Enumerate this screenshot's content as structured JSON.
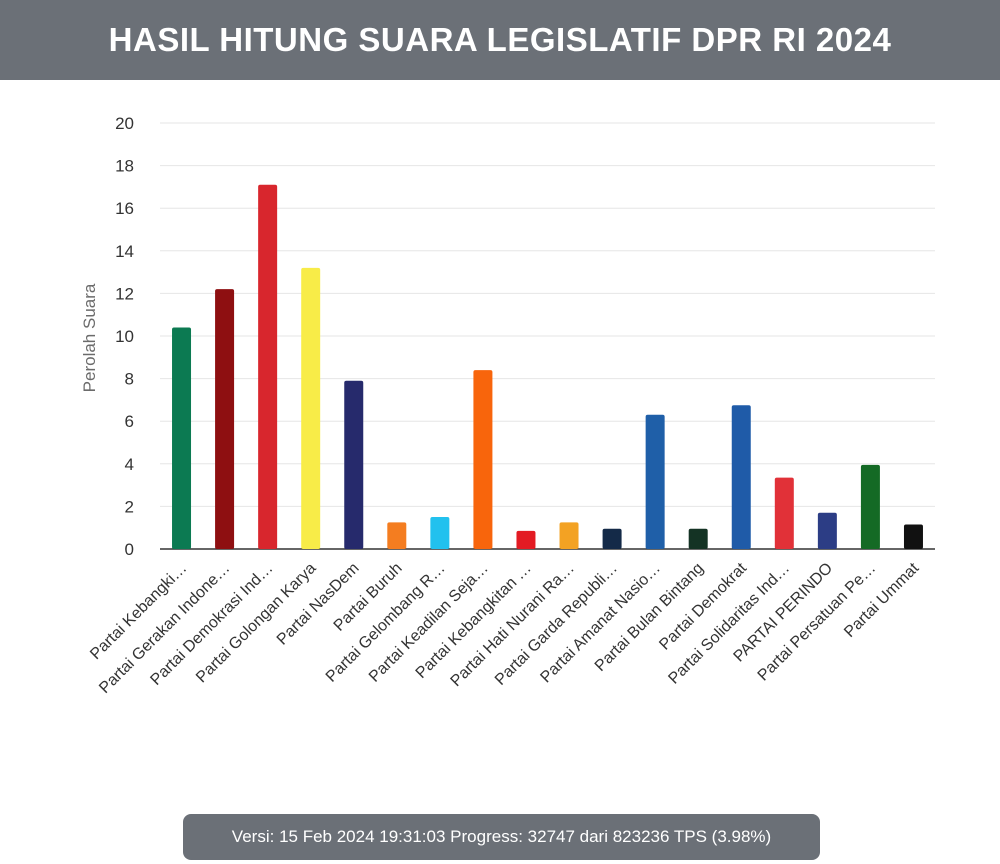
{
  "header": {
    "title": "HASIL HITUNG SUARA LEGISLATIF DPR RI 2024"
  },
  "footer": {
    "version_label": "Versi:",
    "version_value": "15 Feb 2024 19:31:03",
    "progress_label": "Progress:",
    "progress_value": "32747 dari 823236 TPS (3.98%)"
  },
  "chart_data": {
    "type": "bar",
    "title": "",
    "xlabel": "",
    "ylabel": "Perolah Suara",
    "ylim": [
      0,
      20
    ],
    "yticks": [
      0,
      2,
      4,
      6,
      8,
      10,
      12,
      14,
      16,
      18,
      20
    ],
    "grid": true,
    "categories": [
      "Partai Kebangki…",
      "Partai Gerakan Indone…",
      "Partai Demokrasi Ind…",
      "Partai Golongan Karya",
      "Partai NasDem",
      "Partai Buruh",
      "Partai Gelombang R…",
      "Partai Keadilan Seja…",
      "Partai Kebangkitan …",
      "Partai Hati Nurani Ra…",
      "Partai Garda Republi…",
      "Partai Amanat Nasio…",
      "Partai Bulan Bintang",
      "Partai Demokrat",
      "Partai Solidaritas Ind…",
      "PARTAI PERINDO",
      "Partai Persatuan Pe…",
      "Partai Ummat"
    ],
    "values": [
      10.4,
      12.2,
      17.1,
      13.2,
      7.9,
      1.25,
      1.5,
      8.4,
      0.85,
      1.25,
      0.95,
      6.3,
      0.95,
      6.75,
      3.35,
      1.7,
      3.95,
      1.15
    ],
    "colors": [
      "#0c7a52",
      "#8e0f11",
      "#d8262d",
      "#f8ec48",
      "#262a6c",
      "#f47d20",
      "#22c1ee",
      "#f8650c",
      "#e31b23",
      "#f3a223",
      "#142a48",
      "#1f5fa8",
      "#143324",
      "#1f5ba8",
      "#e13138",
      "#2c3d85",
      "#146a25",
      "#111111"
    ]
  }
}
